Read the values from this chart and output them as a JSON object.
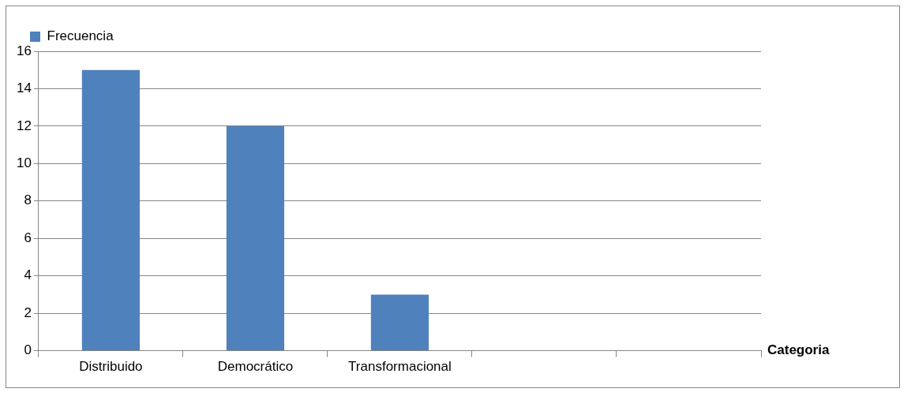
{
  "chart_data": {
    "type": "bar",
    "xlabel": "Categoria",
    "categories": [
      "Distribuido",
      "Democrático",
      "Transformacional",
      null,
      null
    ],
    "series": [
      {
        "name": "Frecuencia",
        "color": "#4f81bd",
        "values": [
          15,
          12,
          3,
          null,
          null
        ]
      }
    ],
    "ylim": [
      0,
      16
    ],
    "yticks": [
      0,
      2,
      4,
      6,
      8,
      10,
      12,
      14,
      16
    ],
    "grid": "y",
    "legend": "top left"
  }
}
